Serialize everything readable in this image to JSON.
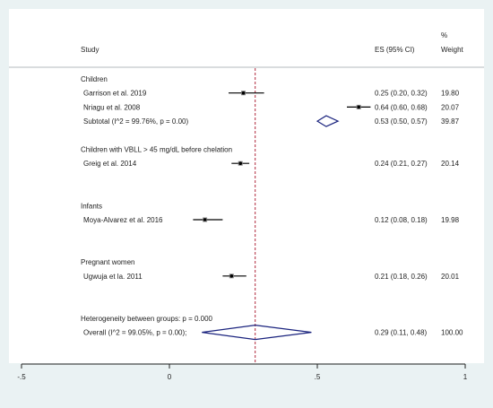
{
  "chart_data": {
    "type": "forest",
    "headers": {
      "study": "Study",
      "es": "ES (95% CI)",
      "weight_top": "%",
      "weight": "Weight"
    },
    "x_ticks": [
      {
        "value": -0.5,
        "label": "-.5"
      },
      {
        "value": 0,
        "label": "0"
      },
      {
        "value": 0.5,
        "label": ".5"
      },
      {
        "value": 1,
        "label": "1"
      }
    ],
    "xlim": [
      -0.5,
      1
    ],
    "overall_es": 0.29,
    "rows": [
      {
        "kind": "group",
        "label": "Children"
      },
      {
        "kind": "study",
        "label": "Garrison et al. 2019",
        "es": 0.25,
        "lo": 0.2,
        "hi": 0.32,
        "ci_text": "0.25 (0.20, 0.32)",
        "weight": "19.80"
      },
      {
        "kind": "study",
        "label": "Nriagu et al. 2008",
        "es": 0.64,
        "lo": 0.6,
        "hi": 0.68,
        "ci_text": "0.64 (0.60, 0.68)",
        "weight": "20.07"
      },
      {
        "kind": "subtotal",
        "label": "Subtotal  (I^2 = 99.76%, p = 0.00)",
        "es": 0.53,
        "lo": 0.5,
        "hi": 0.57,
        "ci_text": "0.53 (0.50, 0.57)",
        "weight": "39.87"
      },
      {
        "kind": "gap"
      },
      {
        "kind": "group",
        "label": "Children with VBLL > 45 mg/dL before chelation"
      },
      {
        "kind": "study",
        "label": "Greig et al. 2014",
        "es": 0.24,
        "lo": 0.21,
        "hi": 0.27,
        "ci_text": "0.24 (0.21, 0.27)",
        "weight": "20.14"
      },
      {
        "kind": "gap"
      },
      {
        "kind": "gap"
      },
      {
        "kind": "group",
        "label": "Infants"
      },
      {
        "kind": "study",
        "label": "Moya-Alvarez et al. 2016",
        "es": 0.12,
        "lo": 0.08,
        "hi": 0.18,
        "ci_text": "0.12 (0.08, 0.18)",
        "weight": "19.98"
      },
      {
        "kind": "gap"
      },
      {
        "kind": "gap"
      },
      {
        "kind": "group",
        "label": "Pregnant women"
      },
      {
        "kind": "study",
        "label": "Ugwuja et la. 2011",
        "es": 0.21,
        "lo": 0.18,
        "hi": 0.26,
        "ci_text": "0.21 (0.18, 0.26)",
        "weight": "20.01"
      },
      {
        "kind": "gap"
      },
      {
        "kind": "gap"
      },
      {
        "kind": "note",
        "label": "Heterogeneity between groups: p = 0.000"
      },
      {
        "kind": "overall",
        "label": "Overall  (I^2 = 99.05%, p = 0.00);",
        "es": 0.29,
        "lo": 0.11,
        "hi": 0.48,
        "ci_text": "0.29 (0.11, 0.48)",
        "weight": "100.00"
      }
    ],
    "colors": {
      "background": "#eaf2f3",
      "panel": "#ffffff",
      "diamond": "#1a237e",
      "overall_line": "#b0283c",
      "marker": "#000000",
      "ci_line": "#000000"
    }
  }
}
